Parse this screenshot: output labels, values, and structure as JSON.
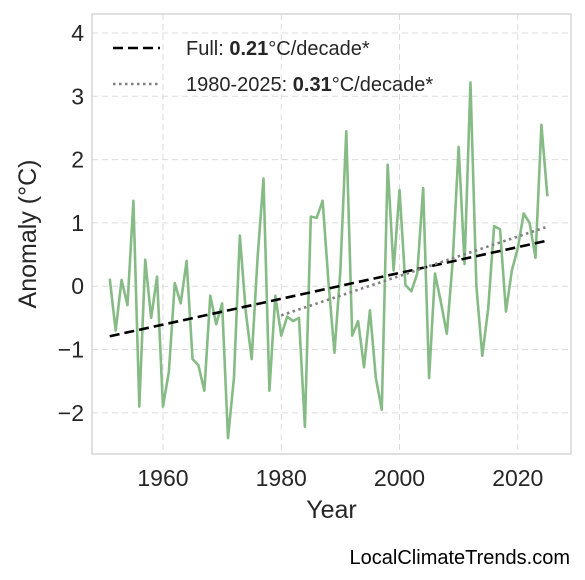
{
  "chart_data": {
    "type": "line",
    "xlabel": "Year",
    "ylabel": "Anomaly (°C)",
    "xlim": [
      1948,
      2029
    ],
    "ylim": [
      -2.65,
      4.3
    ],
    "xticks": [
      1960,
      1980,
      2000,
      2020
    ],
    "yticks": [
      -2,
      -1,
      0,
      1,
      2,
      3,
      4
    ],
    "ytick_labels": [
      "−2",
      "−1",
      "0",
      "1",
      "2",
      "3",
      "4"
    ],
    "grid": true,
    "legend_position": "top-left",
    "series": [
      {
        "role": "data",
        "color": "#86bb86",
        "x": [
          1951,
          1952,
          1953,
          1954,
          1955,
          1956,
          1957,
          1958,
          1959,
          1960,
          1961,
          1962,
          1963,
          1964,
          1965,
          1966,
          1967,
          1968,
          1969,
          1970,
          1971,
          1972,
          1973,
          1974,
          1975,
          1976,
          1977,
          1978,
          1979,
          1980,
          1981,
          1982,
          1983,
          1984,
          1985,
          1986,
          1987,
          1988,
          1989,
          1990,
          1991,
          1992,
          1993,
          1994,
          1995,
          1996,
          1997,
          1998,
          1999,
          2000,
          2001,
          2002,
          2003,
          2004,
          2005,
          2006,
          2007,
          2008,
          2009,
          2010,
          2011,
          2012,
          2013,
          2014,
          2015,
          2016,
          2017,
          2018,
          2019,
          2020,
          2021,
          2022,
          2023,
          2024,
          2025
        ],
        "y": [
          0.12,
          -0.7,
          0.1,
          -0.3,
          1.35,
          -1.9,
          0.42,
          -0.5,
          0.15,
          -1.9,
          -1.35,
          0.05,
          -0.27,
          0.4,
          -1.15,
          -1.25,
          -1.65,
          -0.15,
          -0.6,
          -0.27,
          -2.4,
          -1.45,
          0.8,
          -0.4,
          -1.15,
          0.45,
          1.7,
          -1.65,
          -0.15,
          -0.78,
          -0.48,
          -0.55,
          -0.5,
          -2.22,
          1.1,
          1.08,
          1.35,
          0.05,
          -1.05,
          0.25,
          2.45,
          -0.78,
          -0.55,
          -1.28,
          -0.38,
          -1.45,
          -1.95,
          1.92,
          0.25,
          1.52,
          0.02,
          -0.08,
          0.2,
          1.55,
          -1.45,
          0.2,
          -0.25,
          -0.75,
          0.4,
          2.2,
          0.35,
          3.22,
          0.0,
          -1.1,
          -0.35,
          0.95,
          0.9,
          -0.4,
          0.25,
          0.6,
          1.15,
          1.0,
          0.45,
          2.55,
          1.42
        ]
      },
      {
        "role": "trend_full",
        "color": "#000000",
        "dash": "dashed",
        "x": [
          1951,
          2025
        ],
        "y": [
          -0.79,
          0.72
        ]
      },
      {
        "role": "trend_recent",
        "color": "#808080",
        "dash": "dotted",
        "x": [
          1980,
          2025
        ],
        "y": [
          -0.46,
          0.94
        ]
      }
    ],
    "legend": [
      {
        "prefix": "Full: ",
        "value": "0.21",
        "suffix": "°C/decade*",
        "style": "dashed",
        "color": "#000000"
      },
      {
        "prefix": "1980-2025: ",
        "value": "0.31",
        "suffix": "°C/decade*",
        "style": "dotted",
        "color": "#808080"
      }
    ]
  },
  "credit": "LocalClimateTrends.com"
}
